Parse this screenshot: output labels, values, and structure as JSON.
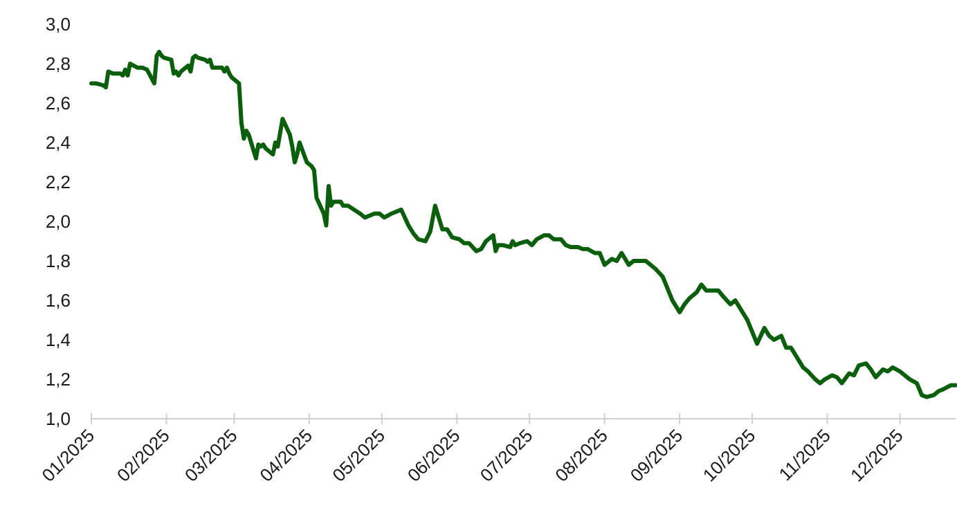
{
  "chart_data": {
    "type": "line",
    "title": "",
    "xlabel": "",
    "ylabel": "",
    "ylim": [
      1.0,
      3.0
    ],
    "yticks": [
      "1,0",
      "1,2",
      "1,4",
      "1,6",
      "1,8",
      "2,0",
      "2,2",
      "2,4",
      "2,6",
      "2,8",
      "3,0"
    ],
    "ytick_values": [
      1.0,
      1.2,
      1.4,
      1.6,
      1.8,
      2.0,
      2.2,
      2.4,
      2.6,
      2.8,
      3.0
    ],
    "xticks": [
      "01/2025",
      "02/2025",
      "03/2025",
      "04/2025",
      "05/2025",
      "06/2025",
      "07/2025",
      "08/2025",
      "09/2025",
      "10/2025",
      "11/2025",
      "12/2025"
    ],
    "xlim": [
      "2025-01-01",
      "2025-12-24"
    ],
    "grid": false,
    "legend": "none",
    "line_color": "#0b5e0b",
    "series": [
      {
        "x": [
          "2025-01-01",
          "2025-01-03",
          "2025-01-06",
          "2025-01-07",
          "2025-01-08",
          "2025-01-10",
          "2025-01-13",
          "2025-01-14",
          "2025-01-15",
          "2025-01-16",
          "2025-01-17",
          "2025-01-20",
          "2025-01-21",
          "2025-01-22",
          "2025-01-24",
          "2025-01-27",
          "2025-01-28",
          "2025-01-29",
          "2025-01-30",
          "2025-01-31",
          "2025-02-03",
          "2025-02-04",
          "2025-02-05",
          "2025-02-06",
          "2025-02-07",
          "2025-02-10",
          "2025-02-11",
          "2025-02-12",
          "2025-02-13",
          "2025-02-14",
          "2025-02-17",
          "2025-02-18",
          "2025-02-19",
          "2025-02-20",
          "2025-02-21",
          "2025-02-24",
          "2025-02-25",
          "2025-02-26",
          "2025-02-27",
          "2025-02-28",
          "2025-03-03",
          "2025-03-04",
          "2025-03-05",
          "2025-03-06",
          "2025-03-07",
          "2025-03-10",
          "2025-03-11",
          "2025-03-12",
          "2025-03-13",
          "2025-03-14",
          "2025-03-17",
          "2025-03-18",
          "2025-03-19",
          "2025-03-20",
          "2025-03-21",
          "2025-03-24",
          "2025-03-25",
          "2025-03-26",
          "2025-03-27",
          "2025-03-28",
          "2025-03-31",
          "2025-04-01",
          "2025-04-02",
          "2025-04-03",
          "2025-04-04",
          "2025-04-07",
          "2025-04-08",
          "2025-04-09",
          "2025-04-10",
          "2025-04-11",
          "2025-04-14",
          "2025-04-15",
          "2025-04-16",
          "2025-04-17",
          "2025-04-22",
          "2025-04-24",
          "2025-04-28",
          "2025-04-30",
          "2025-05-02",
          "2025-05-05",
          "2025-05-07",
          "2025-05-09",
          "2025-05-12",
          "2025-05-14",
          "2025-05-16",
          "2025-05-19",
          "2025-05-21",
          "2025-05-23",
          "2025-05-26",
          "2025-05-28",
          "2025-05-30",
          "2025-06-02",
          "2025-06-04",
          "2025-06-06",
          "2025-06-09",
          "2025-06-11",
          "2025-06-13",
          "2025-06-16",
          "2025-06-17",
          "2025-06-18",
          "2025-06-20",
          "2025-06-23",
          "2025-06-24",
          "2025-06-25",
          "2025-06-27",
          "2025-06-30",
          "2025-07-02",
          "2025-07-04",
          "2025-07-07",
          "2025-07-09",
          "2025-07-11",
          "2025-07-14",
          "2025-07-16",
          "2025-07-18",
          "2025-07-21",
          "2025-07-23",
          "2025-07-25",
          "2025-07-28",
          "2025-07-30",
          "2025-08-01",
          "2025-08-04",
          "2025-08-06",
          "2025-08-08",
          "2025-08-11",
          "2025-08-13",
          "2025-08-15",
          "2025-08-18",
          "2025-08-20",
          "2025-08-22",
          "2025-08-25",
          "2025-08-27",
          "2025-08-29",
          "2025-09-01",
          "2025-09-03",
          "2025-09-05",
          "2025-09-08",
          "2025-09-10",
          "2025-09-12",
          "2025-09-15",
          "2025-09-17",
          "2025-09-19",
          "2025-09-22",
          "2025-09-24",
          "2025-09-26",
          "2025-09-29",
          "2025-10-01",
          "2025-10-03",
          "2025-10-06",
          "2025-10-08",
          "2025-10-10",
          "2025-10-13",
          "2025-10-15",
          "2025-10-17",
          "2025-10-20",
          "2025-10-22",
          "2025-10-24",
          "2025-10-27",
          "2025-10-29",
          "2025-10-31",
          "2025-11-03",
          "2025-11-05",
          "2025-11-07",
          "2025-11-10",
          "2025-11-12",
          "2025-11-14",
          "2025-11-17",
          "2025-11-19",
          "2025-11-21",
          "2025-11-24",
          "2025-11-26",
          "2025-11-28",
          "2025-12-01",
          "2025-12-03",
          "2025-12-05",
          "2025-12-08",
          "2025-12-10",
          "2025-12-12",
          "2025-12-15",
          "2025-12-17",
          "2025-12-19",
          "2025-12-22",
          "2025-12-24"
        ],
        "y": [
          2.7,
          2.7,
          2.69,
          2.68,
          2.76,
          2.75,
          2.75,
          2.74,
          2.77,
          2.74,
          2.8,
          2.78,
          2.78,
          2.78,
          2.77,
          2.7,
          2.84,
          2.86,
          2.84,
          2.83,
          2.82,
          2.75,
          2.76,
          2.74,
          2.76,
          2.79,
          2.76,
          2.83,
          2.84,
          2.83,
          2.82,
          2.81,
          2.82,
          2.78,
          2.78,
          2.78,
          2.76,
          2.78,
          2.75,
          2.73,
          2.7,
          2.5,
          2.42,
          2.46,
          2.44,
          2.32,
          2.39,
          2.38,
          2.39,
          2.37,
          2.34,
          2.4,
          2.38,
          2.45,
          2.52,
          2.44,
          2.38,
          2.3,
          2.34,
          2.4,
          2.3,
          2.29,
          2.28,
          2.26,
          2.12,
          2.04,
          1.98,
          2.18,
          2.08,
          2.1,
          2.1,
          2.08,
          2.08,
          2.08,
          2.04,
          2.02,
          2.04,
          2.04,
          2.02,
          2.04,
          2.05,
          2.06,
          1.98,
          1.94,
          1.91,
          1.9,
          1.95,
          2.08,
          1.96,
          1.96,
          1.92,
          1.91,
          1.89,
          1.89,
          1.85,
          1.86,
          1.9,
          1.93,
          1.85,
          1.88,
          1.88,
          1.87,
          1.9,
          1.88,
          1.89,
          1.9,
          1.88,
          1.91,
          1.93,
          1.93,
          1.91,
          1.91,
          1.88,
          1.87,
          1.87,
          1.86,
          1.86,
          1.84,
          1.84,
          1.78,
          1.81,
          1.8,
          1.84,
          1.78,
          1.8,
          1.8,
          1.8,
          1.78,
          1.76,
          1.72,
          1.66,
          1.6,
          1.54,
          1.58,
          1.61,
          1.64,
          1.68,
          1.65,
          1.65,
          1.65,
          1.62,
          1.58,
          1.6,
          1.56,
          1.5,
          1.44,
          1.38,
          1.46,
          1.42,
          1.4,
          1.42,
          1.36,
          1.36,
          1.3,
          1.26,
          1.24,
          1.2,
          1.18,
          1.2,
          1.22,
          1.21,
          1.18,
          1.23,
          1.22,
          1.27,
          1.28,
          1.25,
          1.21,
          1.25,
          1.24,
          1.26,
          1.24,
          1.22,
          1.2,
          1.18,
          1.12,
          1.11,
          1.12,
          1.14,
          1.15,
          1.17,
          1.17
        ]
      }
    ]
  }
}
